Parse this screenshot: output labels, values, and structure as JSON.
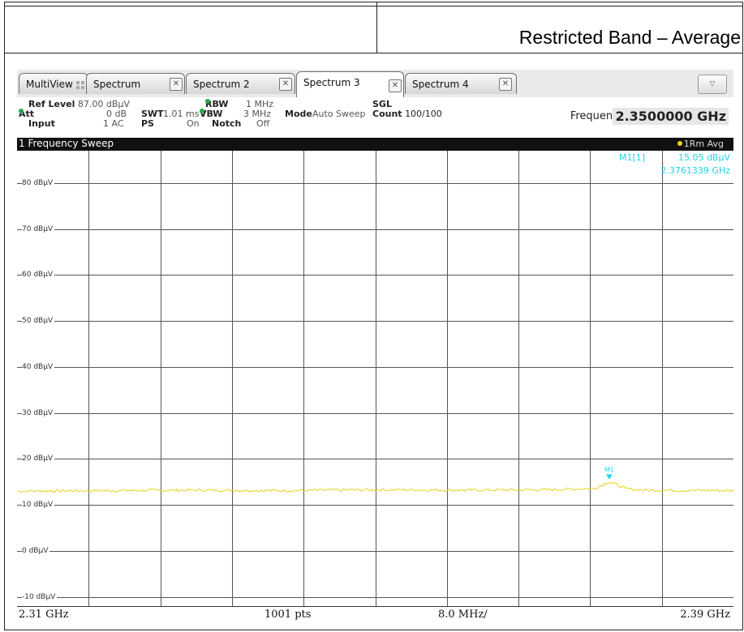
{
  "header": {
    "title": "Restricted Band – Average"
  },
  "tabs": [
    {
      "label": "MultiView"
    },
    {
      "label": "Spectrum"
    },
    {
      "label": "Spectrum 2"
    },
    {
      "label": "Spectrum 3"
    },
    {
      "label": "Spectrum 4"
    }
  ],
  "info": {
    "ref_level_label": "Ref Level",
    "ref_level_value": "87.00 dBµV",
    "att_label": "Att",
    "att_value": "0 dB",
    "input_label": "Input",
    "input_value": "1 AC",
    "swt_label": "SWT",
    "swt_value": "1.01 ms",
    "ps_label": "PS",
    "ps_value": "On",
    "rbw_label": "RBW",
    "rbw_value": "1 MHz",
    "vbw_label": "VBW",
    "vbw_value": "3 MHz",
    "notch_label": "Notch",
    "notch_value": "Off",
    "mode_label": "Mode",
    "mode_value": "Auto Sweep",
    "sgl": "SGL",
    "count_label": "Count",
    "count_value": "100/100",
    "frequency_label": "Frequency",
    "frequency_value": "2.3500000 GHz"
  },
  "sweep": {
    "title": "1 Frequency Sweep",
    "trace_label": "1Rm Avg"
  },
  "marker": {
    "name": "M1[1]",
    "level": "15.05 dBµV",
    "freq": "2.3761339 GHz",
    "plot_label": "M1"
  },
  "footer": {
    "start": "2.31 GHz",
    "points": "1001 pts",
    "span_div": "8.0 MHz/",
    "stop": "2.39 GHz"
  },
  "colors": {
    "trace": "#e8d21a",
    "marker": "#1fd6e8",
    "grid": "#555555"
  },
  "chart_data": {
    "type": "line",
    "title": "1 Frequency Sweep",
    "xlabel": "",
    "ylabel": "",
    "xlim": [
      2.31,
      2.39
    ],
    "ylim": [
      -12,
      87
    ],
    "yticks": [
      80,
      70,
      60,
      50,
      40,
      30,
      20,
      10,
      0,
      -10
    ],
    "ytick_labels": [
      "80 dBµV",
      "70 dBµV",
      "60 dBµV",
      "50 dBµV",
      "40 dBµV",
      "30 dBµV",
      "20 dBµV",
      "10 dBµV",
      "0 dBµV",
      "-10 dBµV"
    ],
    "grid": true,
    "series": [
      {
        "name": "1Rm Avg",
        "x": [
          2.31,
          2.32,
          2.33,
          2.34,
          2.35,
          2.36,
          2.37,
          2.3745,
          2.3761339,
          2.378,
          2.38,
          2.39
        ],
        "y": [
          13.0,
          13.1,
          13.2,
          13.1,
          13.3,
          13.2,
          13.3,
          13.6,
          15.05,
          13.5,
          13.2,
          13.1
        ]
      }
    ],
    "markers": [
      {
        "name": "M1",
        "x": 2.3761339,
        "y": 15.05
      }
    ]
  }
}
